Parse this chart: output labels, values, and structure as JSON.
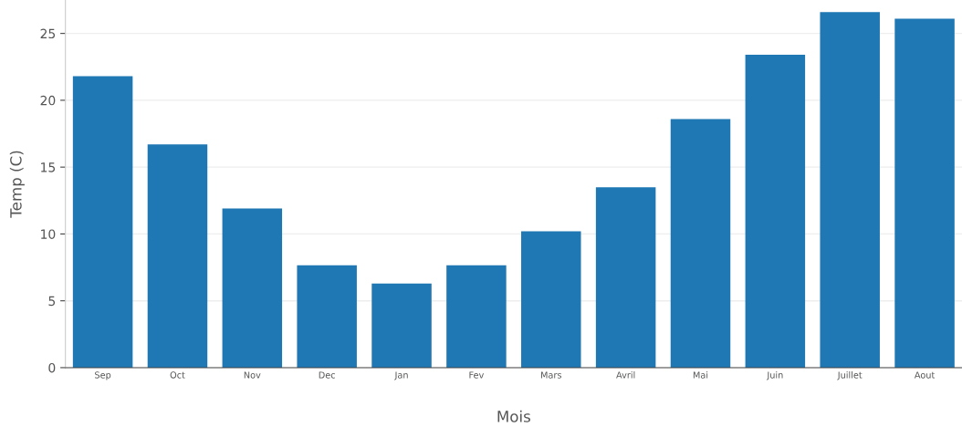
{
  "chart_data": {
    "type": "bar",
    "xlabel": "Mois",
    "ylabel": "Temp (C)",
    "categories": [
      "Sep",
      "Oct",
      "Nov",
      "Dec",
      "Jan",
      "Fev",
      "Mars",
      "Avril",
      "Mai",
      "Juin",
      "Juillet",
      "Aout"
    ],
    "values": [
      21.8,
      16.7,
      11.9,
      7.65,
      6.3,
      7.65,
      10.2,
      13.5,
      18.6,
      23.4,
      26.6,
      26.1
    ],
    "color": "#1f77b4",
    "ylim": [
      0,
      27.5
    ],
    "yticks": [
      0,
      5,
      10,
      15,
      20,
      25
    ],
    "grid": "y"
  }
}
